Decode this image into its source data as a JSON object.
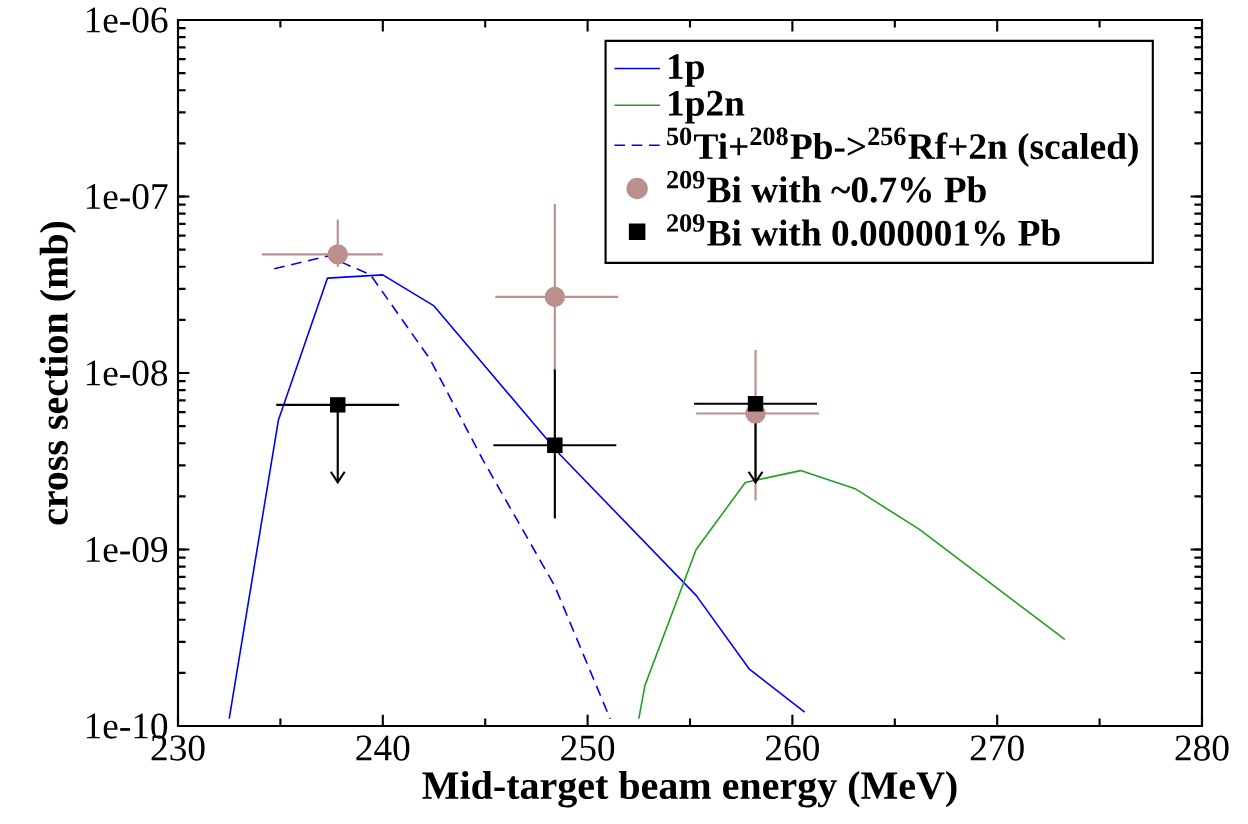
{
  "chart_data": {
    "type": "line",
    "xlabel": "Mid-target beam energy (MeV)",
    "ylabel": "cross section (mb)",
    "log": "y",
    "legend": "top right",
    "xlim": [
      230,
      280
    ],
    "xticks": [
      230,
      240,
      250,
      260,
      270,
      280
    ],
    "ylim": [
      1e-10,
      1e-06
    ],
    "yticks": [
      {
        "value": 1e-10,
        "label": "1e-10"
      },
      {
        "value": 1e-09,
        "label": "1e-09"
      },
      {
        "value": 1e-08,
        "label": "1e-08"
      },
      {
        "value": 1e-07,
        "label": "1e-07"
      },
      {
        "value": 1e-06,
        "label": "1e-06"
      }
    ],
    "series": [
      {
        "name": "1p",
        "color": "#0000ff",
        "line_style": "solid",
        "x": [
          232.5,
          234.9,
          237.3,
          240.0,
          242.5,
          248.6,
          255.3,
          257.9,
          260.6
        ],
        "values": [
          1.1e-10,
          5.4e-09,
          3.45e-08,
          3.6e-08,
          2.4e-08,
          3.5e-09,
          5.5e-10,
          2.1e-10,
          1.2e-10
        ]
      },
      {
        "name": "1p2n",
        "color": "#22a022",
        "line_style": "solid",
        "x": [
          252.5,
          252.8,
          255.3,
          257.7,
          260.4,
          263.1,
          266.2,
          273.3
        ],
        "values": [
          1.1e-10,
          1.7e-10,
          1e-09,
          2.4e-09,
          2.8e-09,
          2.2e-09,
          1.3e-09,
          3.1e-10
        ]
      },
      {
        "name": "$^{50}$Ti+$^{208}$Pb->$^{256}$Rf+2n (scaled)",
        "color": "#0000ff",
        "line_style": "dashed",
        "x": [
          234.7,
          237.3,
          239.4,
          242.3,
          244.9,
          248.4,
          251.1
        ],
        "values": [
          3.9e-08,
          4.6e-08,
          3.6e-08,
          1.2e-08,
          3.2e-09,
          6.2e-10,
          1.1e-10
        ]
      },
      {
        "name": "$^{209}$Bi with ~0.7% Pb",
        "type": "scatter",
        "marker": "circle",
        "color": "#bc8f8f",
        "x": [
          237.8,
          248.4,
          258.2
        ],
        "values": [
          4.7e-08,
          2.7e-08,
          5.9e-09
        ],
        "errors": [
          [
            4e-08,
            7.4e-08
          ],
          [
            1.05e-08,
            9.1e-08
          ],
          [
            1.9e-09,
            1.35e-08
          ]
        ],
        "xerrors": [
          [
            234.1,
            240.0
          ],
          [
            245.5,
            251.5
          ],
          [
            255.3,
            261.3
          ]
        ]
      },
      {
        "name": "$^{209}$Bi with 0.000001% Pb",
        "type": "scatter",
        "marker": "square",
        "color": "#000000",
        "x": [
          237.8,
          248.4,
          258.2
        ],
        "values": [
          6.6e-09,
          3.9e-09,
          6.7e-09
        ],
        "errors": [
          [
            2.4e-09,
            6.6e-09
          ],
          [
            1.5e-09,
            1.05e-08
          ],
          [
            2.4e-09,
            6.7e-09
          ]
        ],
        "xerrors": [
          [
            234.8,
            240.8
          ],
          [
            245.4,
            251.4
          ],
          [
            255.2,
            261.2
          ]
        ]
      }
    ]
  }
}
